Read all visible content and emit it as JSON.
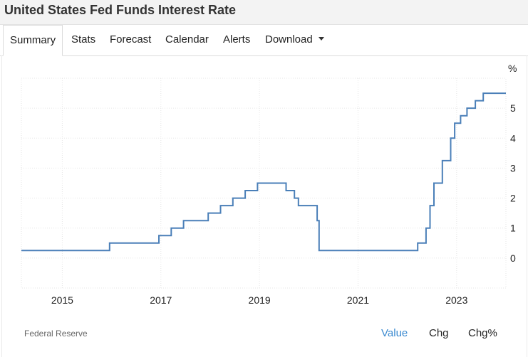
{
  "header": {
    "title": "United States Fed Funds Interest Rate"
  },
  "tabs": [
    {
      "label": "Summary",
      "active": true
    },
    {
      "label": "Stats"
    },
    {
      "label": "Forecast"
    },
    {
      "label": "Calendar"
    },
    {
      "label": "Alerts"
    },
    {
      "label": "Download",
      "dropdown": true
    }
  ],
  "footer": {
    "source": "Federal Reserve",
    "metrics": [
      {
        "label": "Value",
        "active": true
      },
      {
        "label": "Chg"
      },
      {
        "label": "Chg%"
      }
    ]
  },
  "colors": {
    "line": "#4a7fb8",
    "accent": "#3b8ad0"
  },
  "chart_data": {
    "type": "line",
    "title": "",
    "xlabel": "",
    "ylabel": "%",
    "xlim": [
      2014.17,
      2024.0
    ],
    "ylim": [
      -1.0,
      6.0
    ],
    "x_ticks": [
      "2015",
      "2017",
      "2019",
      "2021",
      "2023"
    ],
    "y_ticks": [
      "0",
      "1",
      "2",
      "3",
      "4",
      "5"
    ],
    "grid": true,
    "series": [
      {
        "name": "",
        "step": true,
        "x": [
          2014.17,
          2015.96,
          2016.96,
          2017.21,
          2017.46,
          2017.96,
          2018.21,
          2018.46,
          2018.71,
          2018.96,
          2019.54,
          2019.71,
          2019.79,
          2020.17,
          2020.21,
          2022.21,
          2022.38,
          2022.46,
          2022.54,
          2022.71,
          2022.88,
          2022.96,
          2023.08,
          2023.21,
          2023.38,
          2023.54,
          2023.96
        ],
        "values": [
          0.25,
          0.5,
          0.75,
          1.0,
          1.25,
          1.5,
          1.75,
          2.0,
          2.25,
          2.5,
          2.25,
          2.0,
          1.75,
          1.25,
          0.25,
          0.5,
          1.0,
          1.75,
          2.5,
          3.25,
          4.0,
          4.5,
          4.75,
          5.0,
          5.25,
          5.5,
          5.5
        ]
      }
    ]
  }
}
